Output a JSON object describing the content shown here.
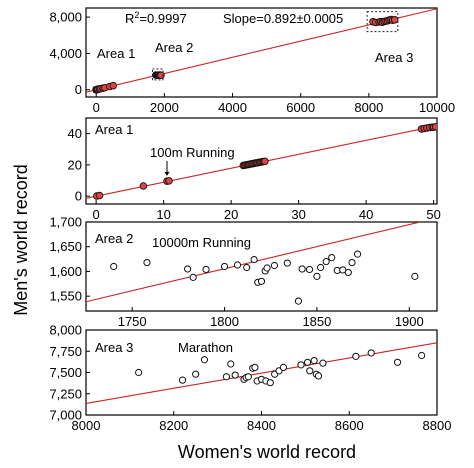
{
  "figure": {
    "xlabel": "Women's world record",
    "ylabel": "Men's world record"
  },
  "chart_data": [
    {
      "type": "scatter",
      "panel": "overview",
      "xlim": [
        -300,
        10000
      ],
      "ylim": [
        -800,
        9000
      ],
      "xticks": [
        0,
        2000,
        4000,
        6000,
        8000,
        10000
      ],
      "xtick_labels": [
        "0",
        "2000",
        "4000",
        "6000",
        "8000",
        "10000"
      ],
      "yticks": [
        0,
        4000,
        8000
      ],
      "ytick_labels": [
        "0",
        "4,000",
        "8,000"
      ],
      "marker": "filled-red-circle",
      "fit_line": {
        "color": "#cc2222",
        "slope": 0.892,
        "intercept": 0
      },
      "annotations": {
        "r2_prefix": "R",
        "r2_exp": "2",
        "r2_value": "=0.9997",
        "slope": "Slope=0.892±0.0005",
        "area1": "Area 1",
        "area2": "Area 2",
        "area3": "Area 3"
      },
      "regions": [
        {
          "label": "Area 1",
          "x": [
            -100,
            90
          ],
          "y": [
            -300,
            300
          ]
        },
        {
          "label": "Area 2",
          "x": [
            1650,
            1960
          ],
          "y": [
            1080,
            2280
          ]
        },
        {
          "label": "Area 3",
          "x": [
            7950,
            8850
          ],
          "y": [
            6400,
            8600
          ]
        }
      ],
      "points": [
        [
          0.1,
          0.1
        ],
        [
          0.2,
          0.2
        ],
        [
          7,
          6.5
        ],
        [
          10.5,
          9.6
        ],
        [
          11,
          9.8
        ],
        [
          22,
          19.3
        ],
        [
          23,
          20.5
        ],
        [
          24.5,
          21.9
        ],
        [
          25,
          22.3
        ],
        [
          48,
          42.8
        ],
        [
          49.5,
          43.8
        ],
        [
          50,
          44.2
        ],
        [
          100,
          90
        ],
        [
          120,
          106
        ],
        [
          200,
          176
        ],
        [
          250,
          223
        ],
        [
          400,
          350
        ],
        [
          500,
          446
        ],
        [
          1750,
          1617
        ],
        [
          1780,
          1598
        ],
        [
          1800,
          1610
        ],
        [
          1820,
          1606
        ],
        [
          1850,
          1612
        ],
        [
          1870,
          1624
        ],
        [
          1900,
          1590
        ],
        [
          8120,
          7490
        ],
        [
          8200,
          7410
        ],
        [
          8300,
          7460
        ],
        [
          8350,
          7500
        ],
        [
          8400,
          7430
        ],
        [
          8450,
          7510
        ],
        [
          8500,
          7550
        ],
        [
          8550,
          7600
        ],
        [
          8600,
          7680
        ],
        [
          8650,
          7730
        ],
        [
          8700,
          7650
        ],
        [
          8760,
          7700
        ]
      ]
    },
    {
      "type": "scatter",
      "panel": "area-1",
      "title": "Area 1",
      "xlim": [
        -1.5,
        50.5
      ],
      "ylim": [
        -5,
        50
      ],
      "xticks": [
        0,
        10,
        20,
        30,
        40,
        50
      ],
      "xtick_labels": [
        "0",
        "10",
        "20",
        "30",
        "40",
        "50"
      ],
      "yticks": [
        0,
        20,
        40
      ],
      "ytick_labels": [
        "0",
        "20",
        "40"
      ],
      "marker": "filled-red-circle",
      "fit_line": {
        "color": "#cc2222",
        "slope": 0.892,
        "intercept": 0
      },
      "annotation": {
        "text": "100m Running",
        "x": 10.5,
        "y": 9.8
      },
      "points": [
        [
          0.1,
          0.1
        ],
        [
          0.5,
          0.4
        ],
        [
          7,
          6.5
        ],
        [
          10.5,
          9.6
        ],
        [
          10.8,
          9.8
        ],
        [
          21.8,
          19.6
        ],
        [
          22,
          19.8
        ],
        [
          22.2,
          20
        ],
        [
          22.4,
          20.2
        ],
        [
          22.6,
          20.3
        ],
        [
          22.8,
          20.5
        ],
        [
          23,
          20.7
        ],
        [
          23.2,
          20.8
        ],
        [
          23.4,
          21
        ],
        [
          23.6,
          21.2
        ],
        [
          23.8,
          21.3
        ],
        [
          24,
          21.5
        ],
        [
          24.2,
          21.7
        ],
        [
          24.4,
          21.8
        ],
        [
          24.6,
          22
        ],
        [
          24.8,
          22.2
        ],
        [
          25,
          22.3
        ],
        [
          48.2,
          43
        ],
        [
          48.6,
          43.3
        ],
        [
          49,
          43.6
        ],
        [
          49.4,
          43.9
        ],
        [
          49.8,
          44.1
        ],
        [
          50,
          44.2
        ],
        [
          50.3,
          44.4
        ]
      ]
    },
    {
      "type": "scatter",
      "panel": "area-2",
      "title": "Area 2",
      "xlim": [
        1725,
        1915
      ],
      "ylim": [
        1520,
        1700
      ],
      "xticks": [
        1750,
        1800,
        1850,
        1900
      ],
      "xtick_labels": [
        "1750",
        "1800",
        "1850",
        "1900"
      ],
      "yticks": [
        1550,
        1600,
        1650,
        1700
      ],
      "ytick_labels": [
        "1,550",
        "1,600",
        "1,650",
        "1,700"
      ],
      "marker": "open-circle",
      "fit_line": {
        "color": "#cc2222",
        "slope": 0.892,
        "intercept": 0
      },
      "annotation": {
        "text": "10000m Running"
      },
      "points": [
        [
          1740,
          1610
        ],
        [
          1758,
          1618
        ],
        [
          1780,
          1605
        ],
        [
          1783,
          1588
        ],
        [
          1790,
          1604
        ],
        [
          1800,
          1610
        ],
        [
          1807,
          1613
        ],
        [
          1812,
          1608
        ],
        [
          1816,
          1624
        ],
        [
          1818,
          1578
        ],
        [
          1820,
          1580
        ],
        [
          1822,
          1601
        ],
        [
          1823,
          1607
        ],
        [
          1827,
          1612
        ],
        [
          1834,
          1617
        ],
        [
          1840,
          1540
        ],
        [
          1842,
          1605
        ],
        [
          1846,
          1604
        ],
        [
          1850,
          1590
        ],
        [
          1852,
          1608
        ],
        [
          1855,
          1620
        ],
        [
          1858,
          1628
        ],
        [
          1861,
          1602
        ],
        [
          1864,
          1603
        ],
        [
          1867,
          1598
        ],
        [
          1869,
          1618
        ],
        [
          1872,
          1635
        ],
        [
          1903,
          1590
        ]
      ]
    },
    {
      "type": "scatter",
      "panel": "area-3",
      "title": "Area 3",
      "xlim": [
        8000,
        8800
      ],
      "ylim": [
        7000,
        8000
      ],
      "xticks": [
        8000,
        8200,
        8400,
        8600,
        8800
      ],
      "xtick_labels": [
        "8000",
        "8200",
        "8400",
        "8600",
        "8800"
      ],
      "yticks": [
        7000,
        7250,
        7500,
        7750,
        8000
      ],
      "ytick_labels": [
        "7,000",
        "7,250",
        "7,500",
        "7,750",
        "8,000"
      ],
      "marker": "open-circle",
      "fit_line": {
        "color": "#cc2222",
        "slope": 0.892,
        "intercept": 0
      },
      "annotation": {
        "text": "Marathon"
      },
      "points": [
        [
          8120,
          7500
        ],
        [
          8220,
          7410
        ],
        [
          8250,
          7480
        ],
        [
          8270,
          7650
        ],
        [
          8320,
          7450
        ],
        [
          8330,
          7600
        ],
        [
          8340,
          7470
        ],
        [
          8360,
          7420
        ],
        [
          8365,
          7440
        ],
        [
          8370,
          7450
        ],
        [
          8380,
          7550
        ],
        [
          8385,
          7560
        ],
        [
          8390,
          7400
        ],
        [
          8400,
          7420
        ],
        [
          8410,
          7400
        ],
        [
          8420,
          7380
        ],
        [
          8430,
          7480
        ],
        [
          8440,
          7520
        ],
        [
          8450,
          7560
        ],
        [
          8490,
          7590
        ],
        [
          8505,
          7620
        ],
        [
          8510,
          7520
        ],
        [
          8520,
          7640
        ],
        [
          8525,
          7480
        ],
        [
          8530,
          7460
        ],
        [
          8540,
          7610
        ],
        [
          8615,
          7690
        ],
        [
          8650,
          7730
        ],
        [
          8710,
          7620
        ],
        [
          8765,
          7700
        ]
      ]
    }
  ]
}
